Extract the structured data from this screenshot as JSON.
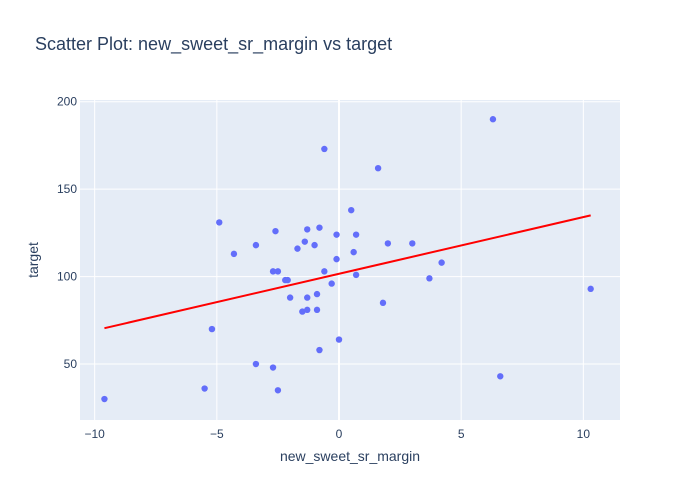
{
  "chart_data": {
    "type": "scatter",
    "title": "Scatter Plot: new_sweet_sr_margin vs target",
    "xlabel": "new_sweet_sr_margin",
    "ylabel": "target",
    "xlim": [
      -10.6,
      11.5
    ],
    "ylim": [
      18,
      201
    ],
    "xticks": [
      -10,
      -5,
      0,
      5,
      10
    ],
    "yticks": [
      50,
      100,
      150,
      200
    ],
    "xtick_labels": [
      "−10",
      "−5",
      "0",
      "5",
      "10"
    ],
    "ytick_labels": [
      "50",
      "100",
      "150",
      "200"
    ],
    "grid": true,
    "point_color": "#636efa",
    "line_color": "#ff0000",
    "plot_bg": "#e5ecf6",
    "points": [
      {
        "x": -9.6,
        "y": 30
      },
      {
        "x": -5.5,
        "y": 36
      },
      {
        "x": -5.2,
        "y": 70
      },
      {
        "x": -4.9,
        "y": 131
      },
      {
        "x": -4.3,
        "y": 113
      },
      {
        "x": -3.4,
        "y": 50
      },
      {
        "x": -3.4,
        "y": 118
      },
      {
        "x": -2.7,
        "y": 48
      },
      {
        "x": -2.7,
        "y": 103
      },
      {
        "x": -2.6,
        "y": 126
      },
      {
        "x": -2.5,
        "y": 103
      },
      {
        "x": -2.5,
        "y": 35
      },
      {
        "x": -2.2,
        "y": 98
      },
      {
        "x": -2.1,
        "y": 98
      },
      {
        "x": -2.0,
        "y": 88
      },
      {
        "x": -1.7,
        "y": 116
      },
      {
        "x": -1.5,
        "y": 80
      },
      {
        "x": -1.4,
        "y": 120
      },
      {
        "x": -1.3,
        "y": 127
      },
      {
        "x": -1.3,
        "y": 81
      },
      {
        "x": -1.3,
        "y": 88
      },
      {
        "x": -1.0,
        "y": 118
      },
      {
        "x": -0.9,
        "y": 81
      },
      {
        "x": -0.9,
        "y": 90
      },
      {
        "x": -0.8,
        "y": 128
      },
      {
        "x": -0.8,
        "y": 58
      },
      {
        "x": -0.6,
        "y": 173
      },
      {
        "x": -0.6,
        "y": 103
      },
      {
        "x": -0.3,
        "y": 96
      },
      {
        "x": -0.1,
        "y": 124
      },
      {
        "x": -0.1,
        "y": 110
      },
      {
        "x": 0.0,
        "y": 64
      },
      {
        "x": 0.5,
        "y": 138
      },
      {
        "x": 0.6,
        "y": 114
      },
      {
        "x": 0.7,
        "y": 124
      },
      {
        "x": 0.7,
        "y": 101
      },
      {
        "x": 1.6,
        "y": 162
      },
      {
        "x": 1.8,
        "y": 85
      },
      {
        "x": 2.0,
        "y": 119
      },
      {
        "x": 3.0,
        "y": 119
      },
      {
        "x": 3.7,
        "y": 99
      },
      {
        "x": 4.2,
        "y": 108
      },
      {
        "x": 6.3,
        "y": 190
      },
      {
        "x": 6.6,
        "y": 43
      },
      {
        "x": 10.3,
        "y": 93
      }
    ],
    "trendline": {
      "x": [
        -9.6,
        10.3
      ],
      "y": [
        70.5,
        135
      ]
    }
  }
}
